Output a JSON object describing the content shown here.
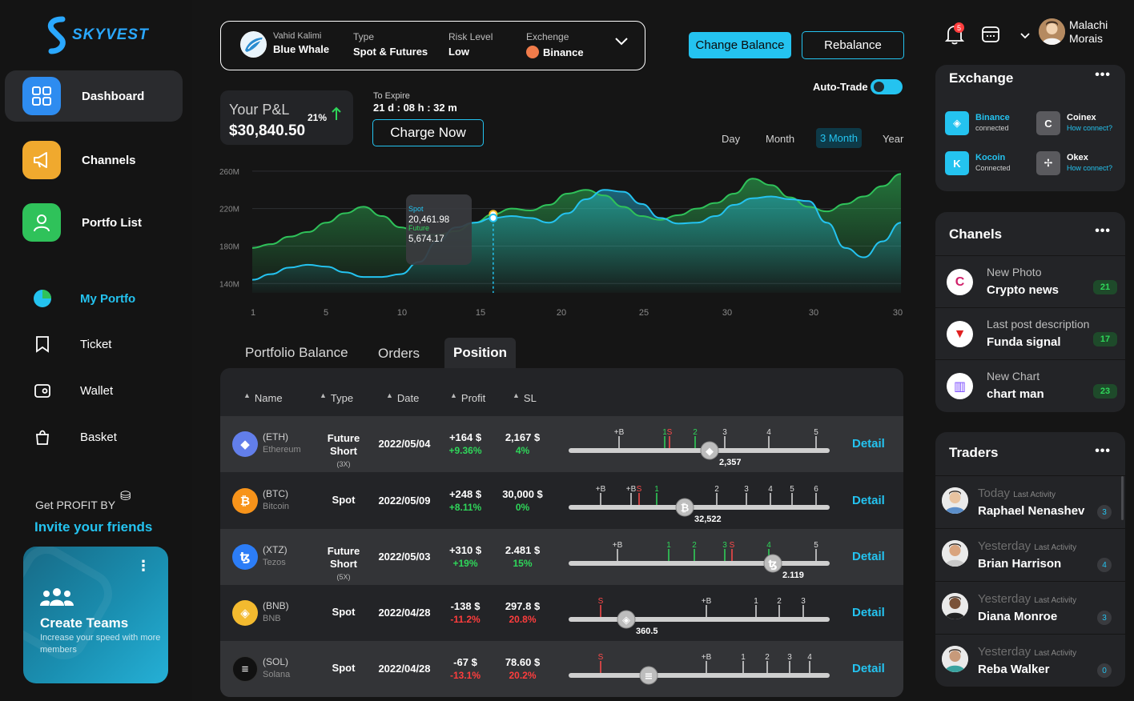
{
  "app": {
    "brand": "SKYVEST"
  },
  "sidebar": {
    "items": [
      {
        "label": "Dashboard",
        "icon": "grid-icon",
        "color": "#2e8cf0"
      },
      {
        "label": "Channels",
        "icon": "megaphone-icon",
        "color": "#f0a92e"
      },
      {
        "label": "Portfo List",
        "icon": "user-icon",
        "color": "#2fc25a"
      }
    ],
    "sub_items": [
      {
        "label": "My Portfo",
        "icon": "pie-icon"
      },
      {
        "label": "Ticket",
        "icon": "ticket-icon"
      },
      {
        "label": "Wallet",
        "icon": "wallet-icon"
      },
      {
        "label": "Basket",
        "icon": "basket-icon"
      }
    ],
    "promo": {
      "line1": "Get PROFIT BY",
      "line2": "Invite your friends"
    },
    "teams_card": {
      "title": "Create  Teams",
      "desc": "Increase your speed with more members"
    }
  },
  "portfolio_bar": {
    "owner_name": "Vahid Kalimi",
    "portfolio_name": "Blue Whale",
    "type_label": "Type",
    "type_value": "Spot & Futures",
    "risk_label": "Risk Level",
    "risk_value": "Low",
    "exchange_label": "Exchenge",
    "exchange_value": "Binance"
  },
  "actions": {
    "change_balance": "Change Balance",
    "rebalance": "Rebalance",
    "auto_trade": "Auto-Trade",
    "charge_now": "Charge Now"
  },
  "pnl": {
    "label": "Your P&L",
    "value": "$30,840.50",
    "change": "21%"
  },
  "expire": {
    "label": "To Expire",
    "value": "21 d : 08 h : 32 m"
  },
  "ranges": {
    "options": [
      "Day",
      "Month",
      "3 Month",
      "Year"
    ],
    "selected": "3 Month"
  },
  "chart_data": {
    "type": "area",
    "title": "",
    "y_ticks": [
      "260M",
      "220M",
      "180M",
      "140M"
    ],
    "x_ticks": [
      "1",
      "5",
      "10",
      "15",
      "20",
      "25",
      "30",
      "30",
      "30"
    ],
    "ylim": [
      130,
      265
    ],
    "series": [
      {
        "name": "Spot",
        "color": "#2fc25a",
        "values": [
          178,
          182,
          190,
          195,
          205,
          215,
          222,
          212,
          200,
          193,
          192,
          196,
          205,
          214,
          220,
          218,
          224,
          236,
          240,
          234,
          222,
          212,
          208,
          213,
          220,
          226,
          236,
          252,
          245,
          232,
          222,
          217,
          225,
          233,
          244,
          257
        ]
      },
      {
        "name": "Future",
        "color": "#24c3f0",
        "values": [
          144,
          150,
          157,
          160,
          158,
          152,
          147,
          147,
          150,
          163,
          185,
          200,
          205,
          210,
          212,
          210,
          205,
          215,
          230,
          240,
          238,
          225,
          210,
          204,
          205,
          212,
          224,
          231,
          233,
          230,
          228,
          205,
          178,
          168,
          185,
          205
        ]
      }
    ],
    "tooltip": {
      "spot_label": "Spot",
      "spot_value": "20,461.98",
      "future_label": "Future",
      "future_value": "5,674.17"
    }
  },
  "tabs": [
    "Portfolio Balance",
    "Orders",
    "Position"
  ],
  "table": {
    "headers": [
      "Name",
      "Type",
      "Date",
      "Profit",
      "SL"
    ],
    "detail_label": "Detail",
    "rows": [
      {
        "symbol": "(ETH)",
        "name": "Ethereum",
        "type": "Future Short",
        "lev": "(3X)",
        "date": "2022/05/04",
        "profit": "+164 $",
        "profit_pct": "+9.36%",
        "sl": "2,167 $",
        "sl_pct": "4%",
        "positive": true,
        "coin_color": "#627eea",
        "coin_glyph": "◆",
        "ticks": [
          "+B",
          "1",
          "S",
          "2",
          "3",
          "4",
          "5"
        ],
        "slider_value": "2,357"
      },
      {
        "symbol": "(BTC)",
        "name": "Bitcoin",
        "type": "Spot",
        "lev": "",
        "date": "2022/05/09",
        "profit": "+248 $",
        "profit_pct": "+8.11%",
        "sl": "30,000 $",
        "sl_pct": "0%",
        "positive": true,
        "coin_color": "#f7931a",
        "coin_glyph": "₿",
        "ticks": [
          "+B",
          "+B",
          "S",
          "1",
          "2",
          "3",
          "4",
          "5",
          "6"
        ],
        "slider_value": "32,522"
      },
      {
        "symbol": "(XTZ)",
        "name": "Tezos",
        "type": "Future Short",
        "lev": "(5X)",
        "date": "2022/05/03",
        "profit": "+310 $",
        "profit_pct": "+19%",
        "sl": "2.481 $",
        "sl_pct": "15%",
        "positive": true,
        "coin_color": "#2c7df7",
        "coin_glyph": "ꜩ",
        "ticks": [
          "+B",
          "1",
          "2",
          "3",
          "S",
          "4",
          "5"
        ],
        "slider_value": "2.119"
      },
      {
        "symbol": "(BNB)",
        "name": "BNB",
        "type": "Spot",
        "lev": "",
        "date": "2022/04/28",
        "profit": "-138 $",
        "profit_pct": "-11.2%",
        "sl": "297.8 $",
        "sl_pct": "20.8%",
        "positive": false,
        "coin_color": "#f3ba2f",
        "coin_glyph": "◈",
        "ticks": [
          "S",
          "+B",
          "1",
          "2",
          "3"
        ],
        "slider_value": "360.5"
      },
      {
        "symbol": "(SOL)",
        "name": "Solana",
        "type": "Spot",
        "lev": "",
        "date": "2022/04/28",
        "profit": "-67 $",
        "profit_pct": "-13.1%",
        "sl": "78.60 $",
        "sl_pct": "20.2%",
        "positive": false,
        "coin_color": "#111111",
        "coin_glyph": "≡",
        "ticks": [
          "S",
          "+B",
          "1",
          "2",
          "3",
          "4"
        ],
        "slider_value": ""
      }
    ]
  },
  "user": {
    "name_line1": "Malachi",
    "name_line2": "Morais",
    "notifications": "5"
  },
  "exchange_panel": {
    "title": "Exchange",
    "items": [
      {
        "name": "Binance",
        "status": "connected",
        "color": "#24c3f0",
        "link": false
      },
      {
        "name": "Coinex",
        "status": "How connect?",
        "color": "#9a9a9a",
        "link": true
      },
      {
        "name": "Kocoin",
        "status": "Connected",
        "color": "#24c3f0",
        "link": false
      },
      {
        "name": "Okex",
        "status": "How connect?",
        "color": "#9a9a9a",
        "link": true
      }
    ]
  },
  "channels_panel": {
    "title": "Chanels",
    "items": [
      {
        "kicker": "New Photo",
        "name": "Crypto news",
        "count": "21",
        "icon_color": "#d0206a"
      },
      {
        "kicker": "Last post description",
        "name": "Funda signal",
        "count": "17",
        "icon_color": "#e02020"
      },
      {
        "kicker": "New Chart",
        "name": "chart man",
        "count": "23",
        "icon_color": "#7b4bff"
      }
    ]
  },
  "traders_panel": {
    "title": "Traders",
    "activity_label": "Last Activity",
    "items": [
      {
        "when": "Today",
        "name": "Raphael Nenashev",
        "count": "3"
      },
      {
        "when": "Yesterday",
        "name": "Brian Harrison",
        "count": "4"
      },
      {
        "when": "Yesterday",
        "name": "Diana Monroe",
        "count": "3"
      },
      {
        "when": "Yesterday",
        "name": "Reba Walker",
        "count": "0"
      }
    ]
  }
}
